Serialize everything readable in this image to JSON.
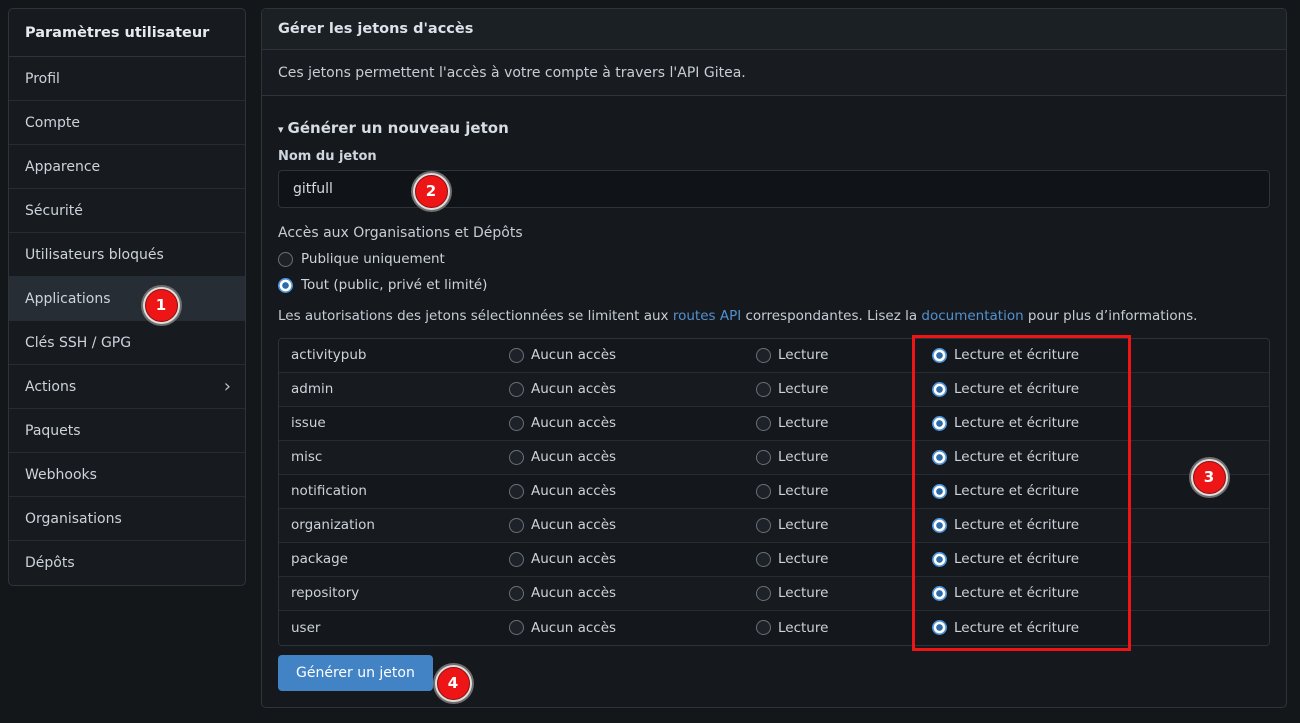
{
  "colors": {
    "accent": "#4183c4",
    "link": "#5490ce",
    "annotation": "#ed1515"
  },
  "sidebar": {
    "title": "Paramètres utilisateur",
    "chevron_glyph": "›",
    "items": [
      {
        "label": "Profil",
        "active": false,
        "chevron": false
      },
      {
        "label": "Compte",
        "active": false,
        "chevron": false
      },
      {
        "label": "Apparence",
        "active": false,
        "chevron": false
      },
      {
        "label": "Sécurité",
        "active": false,
        "chevron": false
      },
      {
        "label": "Utilisateurs bloqués",
        "active": false,
        "chevron": false
      },
      {
        "label": "Applications",
        "active": true,
        "chevron": false
      },
      {
        "label": "Clés SSH / GPG",
        "active": false,
        "chevron": false
      },
      {
        "label": "Actions",
        "active": false,
        "chevron": true
      },
      {
        "label": "Paquets",
        "active": false,
        "chevron": false
      },
      {
        "label": "Webhooks",
        "active": false,
        "chevron": false
      },
      {
        "label": "Organisations",
        "active": false,
        "chevron": false
      },
      {
        "label": "Dépôts",
        "active": false,
        "chevron": false
      }
    ]
  },
  "main": {
    "header": "Gérer les jetons d'accès",
    "description": "Ces jetons permettent l'accès à votre compte à travers l'API Gitea.",
    "generate": {
      "caret": "▾",
      "title": "Générer un nouveau jeton",
      "name_label": "Nom du jeton",
      "name_value": "gitfull",
      "scope_label": "Accès aux Organisations et Dépôts",
      "radios": [
        {
          "label": "Publique uniquement",
          "selected": false
        },
        {
          "label": "Tout (public, privé et limité)",
          "selected": true
        }
      ],
      "note": {
        "prefix": "Les autorisations des jetons sélectionnées se limitent aux ",
        "link_routes": "routes API",
        "middle": " correspondantes. Lisez la ",
        "link_docs": "documentation",
        "suffix": " pour plus d’informations."
      },
      "table": {
        "options": [
          "Aucun accès",
          "Lecture",
          "Lecture et écriture"
        ],
        "selected_option_index": 2,
        "rows": [
          "activitypub",
          "admin",
          "issue",
          "misc",
          "notification",
          "organization",
          "package",
          "repository",
          "user"
        ]
      },
      "submit_label": "Générer un jeton"
    }
  },
  "annotations": {
    "badges": [
      {
        "label": "1"
      },
      {
        "label": "2"
      },
      {
        "label": "3"
      },
      {
        "label": "4"
      }
    ]
  }
}
